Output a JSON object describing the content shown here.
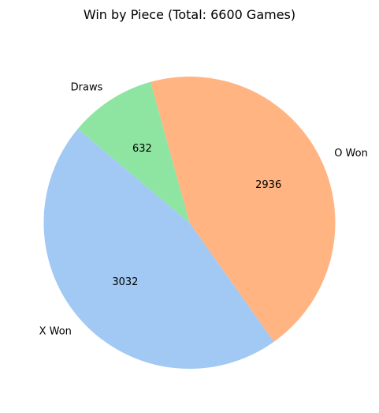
{
  "chart_data": {
    "type": "pie",
    "title": "Win by Piece (Total: 6600 Games)",
    "start_angle_deg": 140,
    "direction": "counterclockwise",
    "slices": [
      {
        "label": "X Won",
        "value": 3032,
        "value_label": "3032",
        "color": "#a1c9f4"
      },
      {
        "label": "O Won",
        "value": 2936,
        "value_label": "2936",
        "color": "#ffb482"
      },
      {
        "label": "Draws",
        "value": 632,
        "value_label": "632",
        "color": "#8de5a1"
      }
    ]
  }
}
